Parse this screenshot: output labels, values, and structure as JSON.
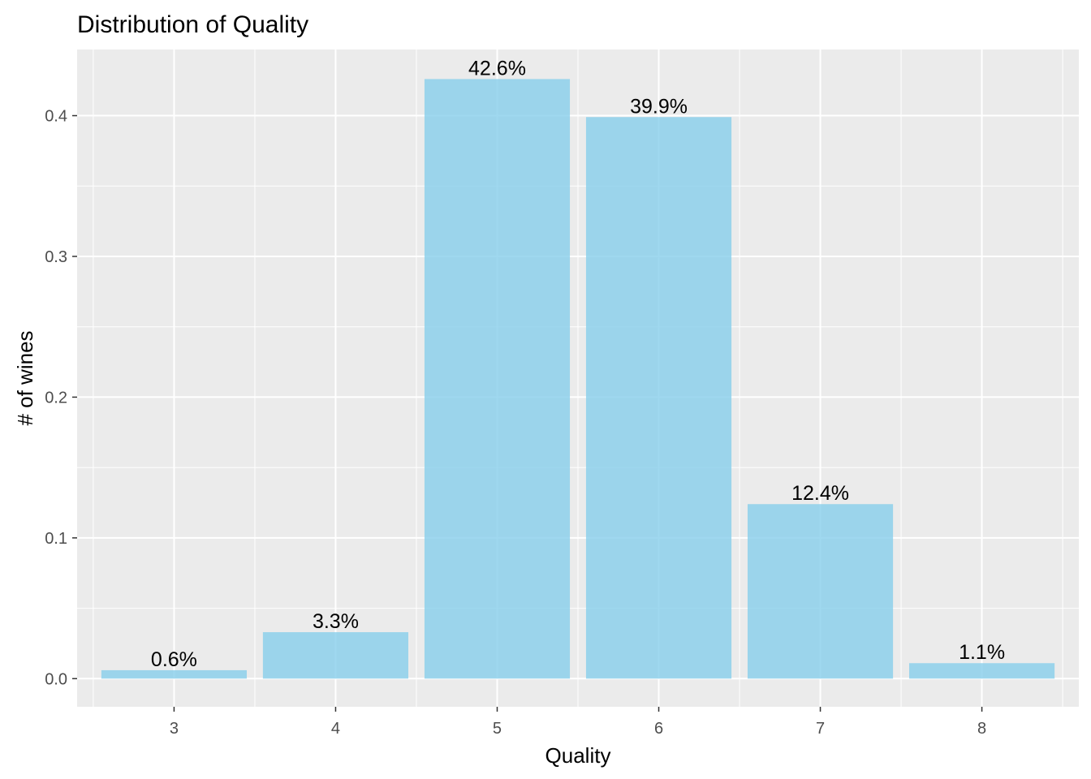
{
  "chart_data": {
    "type": "bar",
    "title": "Distribution of Quality",
    "xlabel": "Quality",
    "ylabel": "# of wines",
    "categories": [
      "3",
      "4",
      "5",
      "6",
      "7",
      "8"
    ],
    "values": [
      0.006,
      0.033,
      0.426,
      0.399,
      0.124,
      0.011
    ],
    "data_labels": [
      "0.6%",
      "3.3%",
      "42.6%",
      "39.9%",
      "12.4%",
      "1.1%"
    ],
    "ylim": [
      -0.02,
      0.447
    ],
    "yticks": [
      0.0,
      0.1,
      0.2,
      0.3,
      0.4
    ],
    "ytick_labels": [
      "0.0",
      "0.1",
      "0.2",
      "0.3",
      "0.4"
    ],
    "grid": true,
    "legend": "none",
    "colors": {
      "bar": "#87CEEB",
      "panel": "#EBEBEB",
      "grid": "#FFFFFF",
      "tick_text": "#4D4D4D"
    }
  }
}
